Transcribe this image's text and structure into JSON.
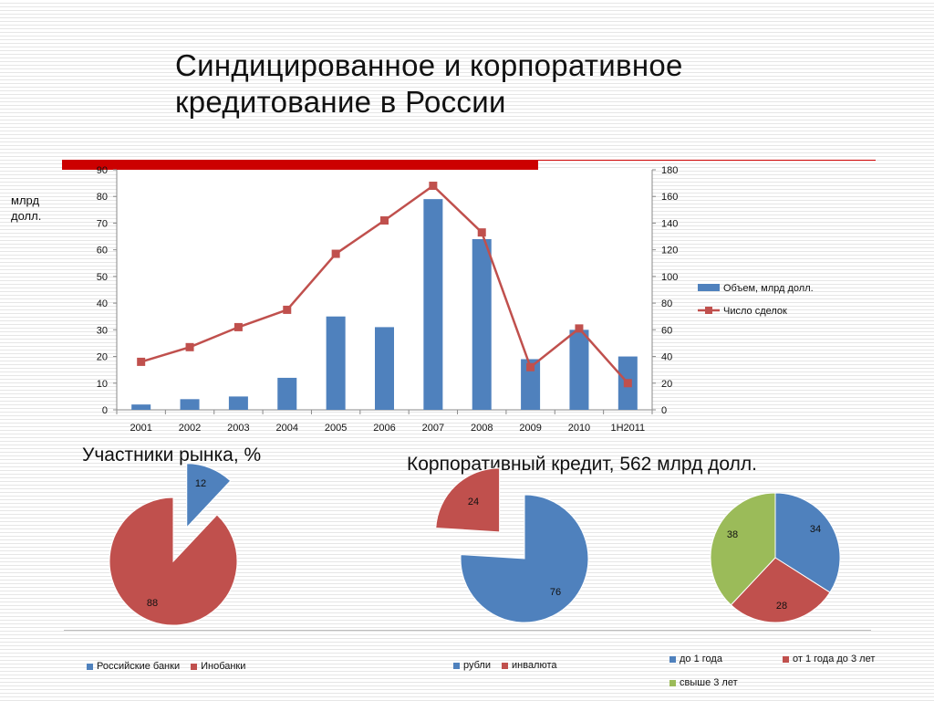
{
  "title": {
    "line1": "Синдицированное и корпоративное",
    "line2": "кредитование в России"
  },
  "colors": {
    "blue": "#4f81bd",
    "red": "#c0504d",
    "green": "#9bbb59",
    "accent_bar": "#cc0000"
  },
  "main_chart": {
    "ylabel_line1": "млрд",
    "ylabel_line2": "долл."
  },
  "pie1": {
    "heading": "Участники рынка, %"
  },
  "pie2": {
    "heading": "Корпоративный кредит, 562 млрд долл."
  },
  "chart_data": [
    {
      "type": "bar",
      "categories": [
        "2001",
        "2002",
        "2003",
        "2004",
        "2005",
        "2006",
        "2007",
        "2008",
        "2009",
        "2010",
        "1H2011"
      ],
      "series": [
        {
          "name": "Объем, млрд долл.",
          "kind": "bar",
          "axis": "left",
          "color": "#4f81bd",
          "values": [
            2,
            4,
            5,
            12,
            35,
            31,
            79,
            64,
            19,
            30,
            20
          ]
        },
        {
          "name": "Число сделок",
          "kind": "line",
          "axis": "right",
          "color": "#c0504d",
          "values": [
            36,
            47,
            62,
            75,
            117,
            142,
            168,
            133,
            32,
            61,
            20
          ]
        }
      ],
      "ylim": [
        0,
        90
      ],
      "y2lim": [
        0,
        180
      ],
      "yticks": [
        0,
        10,
        20,
        30,
        40,
        50,
        60,
        70,
        80,
        90
      ],
      "y2ticks": [
        0,
        20,
        40,
        60,
        80,
        100,
        120,
        140,
        160,
        180
      ],
      "ylabel": "млрд долл.",
      "legend_position": "right"
    },
    {
      "type": "pie",
      "labels": [
        "Российские банки",
        "Инобанки"
      ],
      "values": [
        12,
        88
      ],
      "colors": [
        "#4f81bd",
        "#c0504d"
      ],
      "exploded": [
        true,
        false
      ],
      "title": "Участники рынка, %",
      "legend_position": "bottom"
    },
    {
      "type": "pie",
      "labels": [
        "рубли",
        "инвалюта"
      ],
      "values": [
        76,
        24
      ],
      "colors": [
        "#4f81bd",
        "#c0504d"
      ],
      "exploded": [
        false,
        true
      ],
      "title": "Корпоративный кредит, 562 млрд долл.",
      "legend_position": "bottom"
    },
    {
      "type": "pie",
      "labels": [
        "до 1 года",
        "от 1 года до 3 лет",
        "свыше 3 лет"
      ],
      "values": [
        34,
        28,
        38
      ],
      "colors": [
        "#4f81bd",
        "#c0504d",
        "#9bbb59"
      ],
      "legend_position": "bottom"
    }
  ]
}
